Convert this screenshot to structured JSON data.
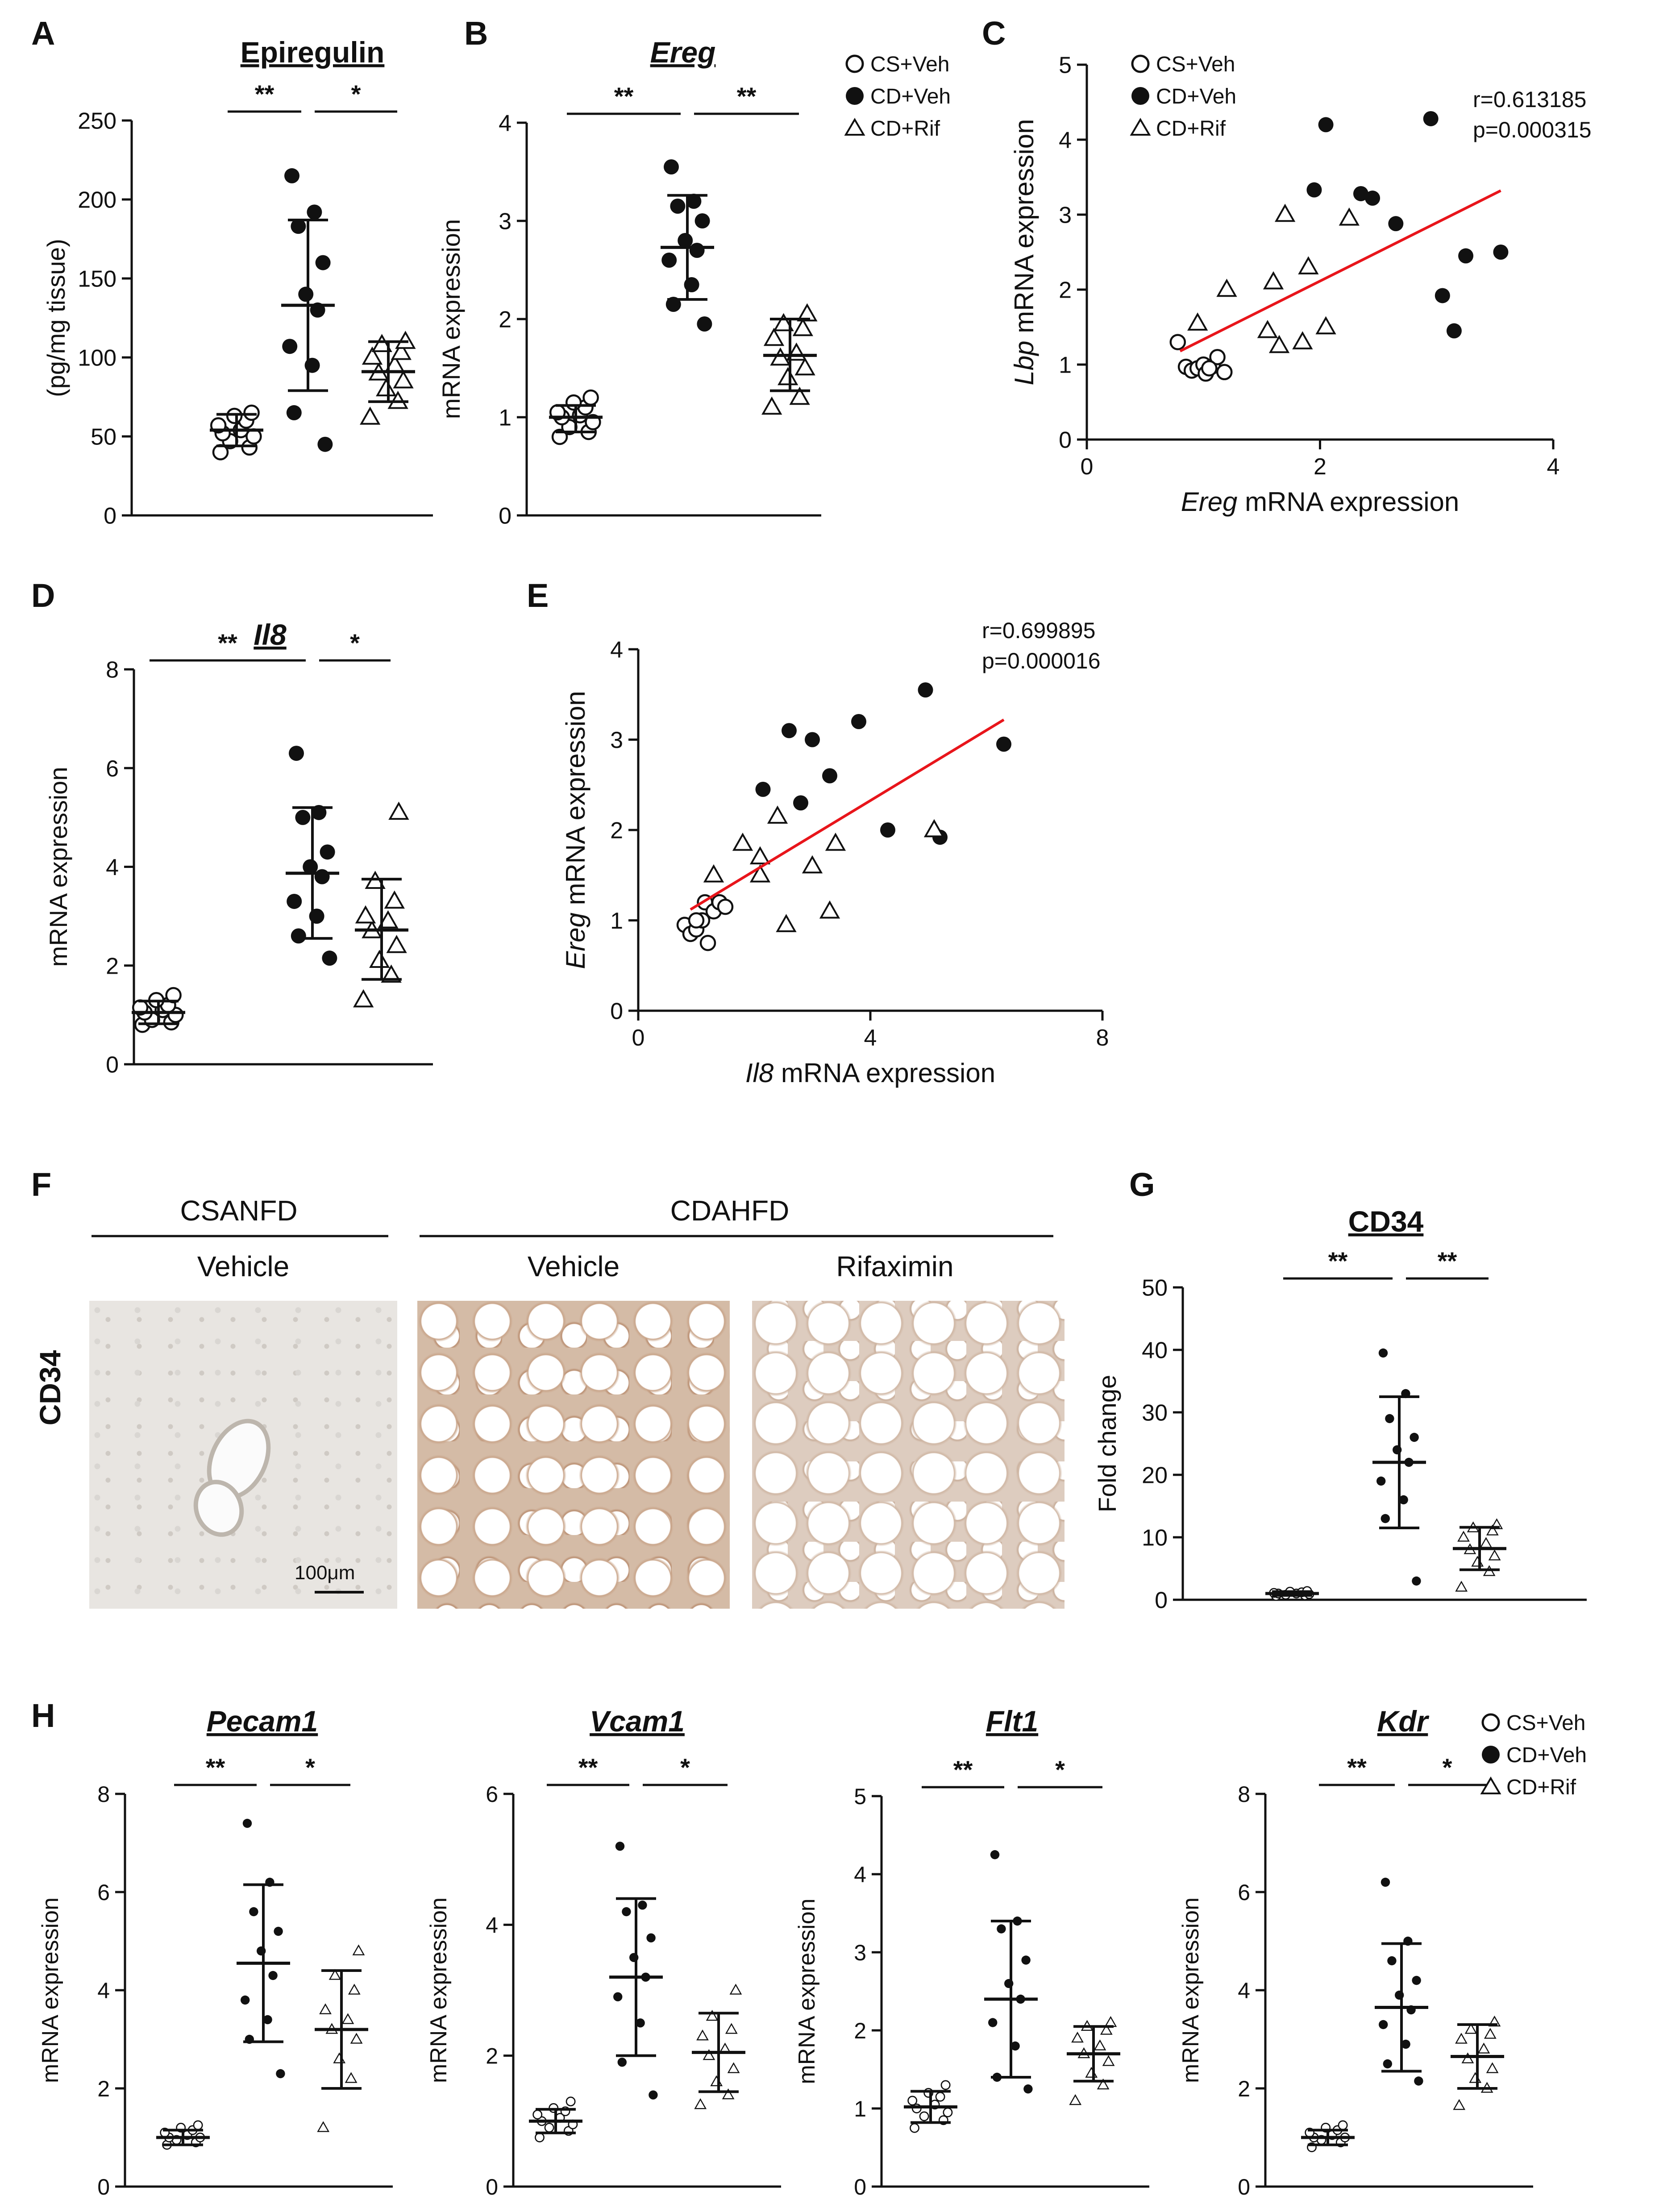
{
  "panels": {
    "A": "A",
    "B": "B",
    "C": "C",
    "D": "D",
    "E": "E",
    "F": "F",
    "G": "G",
    "H": "H"
  },
  "legend": {
    "cs_veh": "CS+Veh",
    "cd_veh": "CD+Veh",
    "cd_rif": "CD+Rif"
  },
  "colors": {
    "points": "#111111",
    "regression": "#e8151b"
  },
  "histology": {
    "group_left": "CSANFD",
    "group_right": "CDAHFD",
    "col1": "Vehicle",
    "col2": "Vehicle",
    "col3": "Rifaximin",
    "row_label": "CD34",
    "scale_bar": "100μm"
  },
  "chart_data": [
    {
      "id": "A",
      "type": "scatter",
      "title": "Epiregulin",
      "title_italic": false,
      "ylabel": "(pg/mg tissue)",
      "ylim": [
        0,
        250
      ],
      "yticks": [
        0,
        50,
        100,
        150,
        200,
        250
      ],
      "groups": [
        {
          "name": "CS+Veh",
          "marker": "open-circle",
          "mean": 54,
          "sd_low": 44,
          "sd_high": 64,
          "values": [
            40,
            43,
            47,
            50,
            52,
            54,
            57,
            60,
            63,
            65
          ]
        },
        {
          "name": "CD+Veh",
          "marker": "filled-circle",
          "mean": 133,
          "sd_low": 79,
          "sd_high": 187,
          "values": [
            45,
            65,
            95,
            107,
            130,
            140,
            160,
            183,
            192,
            215
          ]
        },
        {
          "name": "CD+Rif",
          "marker": "open-triangle",
          "mean": 91,
          "sd_low": 72,
          "sd_high": 110,
          "values": [
            62,
            72,
            80,
            85,
            90,
            95,
            100,
            103,
            108,
            110
          ]
        }
      ],
      "significance": [
        {
          "label": "**",
          "from": 0,
          "to": 1
        },
        {
          "label": "*",
          "from": 1,
          "to": 2
        }
      ]
    },
    {
      "id": "B",
      "type": "scatter",
      "title": "Ereg",
      "title_italic": true,
      "ylabel": "mRNA expression",
      "ylim": [
        0,
        4
      ],
      "yticks": [
        0,
        1,
        2,
        3,
        4
      ],
      "groups": [
        {
          "name": "CS+Veh",
          "marker": "open-circle",
          "mean": 1.0,
          "sd_low": 0.85,
          "sd_high": 1.12,
          "values": [
            0.8,
            0.85,
            0.9,
            0.95,
            1.0,
            1.02,
            1.05,
            1.1,
            1.15,
            1.2
          ]
        },
        {
          "name": "CD+Veh",
          "marker": "filled-circle",
          "mean": 2.73,
          "sd_low": 2.2,
          "sd_high": 3.26,
          "values": [
            1.95,
            2.15,
            2.35,
            2.6,
            2.7,
            2.8,
            3.0,
            3.15,
            3.2,
            3.55
          ]
        },
        {
          "name": "CD+Rif",
          "marker": "open-triangle",
          "mean": 1.63,
          "sd_low": 1.27,
          "sd_high": 2.0,
          "values": [
            1.1,
            1.2,
            1.4,
            1.5,
            1.6,
            1.65,
            1.8,
            1.9,
            1.95,
            2.05
          ]
        }
      ],
      "significance": [
        {
          "label": "**",
          "from": 0,
          "to": 1
        },
        {
          "label": "**",
          "from": 1,
          "to": 2
        }
      ]
    },
    {
      "id": "C",
      "type": "scatter",
      "xlabel_italic": "Ereg",
      "xlabel": "mRNA expression",
      "ylabel_italic": "Lbp",
      "ylabel": "mRNA expression",
      "xlim": [
        0,
        4
      ],
      "xticks": [
        0,
        2,
        4
      ],
      "ylim": [
        0,
        5
      ],
      "yticks": [
        0,
        1,
        2,
        3,
        4,
        5
      ],
      "annotation": {
        "r": "r=0.613185",
        "p": "p=0.000315"
      },
      "regression": {
        "x": [
          0.8,
          3.55
        ],
        "y": [
          1.18,
          3.32
        ]
      },
      "series": [
        {
          "name": "CS+Veh",
          "marker": "open-circle",
          "points": [
            [
              0.78,
              1.3
            ],
            [
              0.85,
              0.97
            ],
            [
              0.9,
              0.92
            ],
            [
              0.95,
              0.95
            ],
            [
              1.0,
              1.0
            ],
            [
              1.02,
              0.88
            ],
            [
              1.08,
              0.98
            ],
            [
              1.12,
              1.1
            ],
            [
              1.18,
              0.9
            ],
            [
              1.05,
              0.95
            ]
          ]
        },
        {
          "name": "CD+Veh",
          "marker": "filled-circle",
          "points": [
            [
              1.95,
              3.33
            ],
            [
              2.05,
              4.2
            ],
            [
              2.35,
              3.28
            ],
            [
              2.45,
              3.22
            ],
            [
              2.65,
              2.88
            ],
            [
              2.95,
              4.28
            ],
            [
              3.05,
              1.92
            ],
            [
              3.15,
              1.45
            ],
            [
              3.25,
              2.45
            ],
            [
              3.55,
              2.5
            ]
          ]
        },
        {
          "name": "CD+Rif",
          "marker": "open-triangle",
          "points": [
            [
              0.95,
              1.55
            ],
            [
              1.2,
              2.0
            ],
            [
              1.55,
              1.45
            ],
            [
              1.6,
              2.1
            ],
            [
              1.65,
              1.25
            ],
            [
              1.85,
              1.3
            ],
            [
              1.9,
              2.3
            ],
            [
              1.7,
              3.0
            ],
            [
              2.05,
              1.5
            ],
            [
              2.25,
              2.95
            ]
          ]
        }
      ]
    },
    {
      "id": "D",
      "type": "scatter",
      "title": "Il8",
      "title_italic": true,
      "ylabel": "mRNA expression",
      "ylim": [
        0,
        8
      ],
      "yticks": [
        0,
        2,
        4,
        6,
        8
      ],
      "groups": [
        {
          "name": "CS+Veh",
          "marker": "open-circle",
          "mean": 1.05,
          "sd_low": 0.82,
          "sd_high": 1.28,
          "values": [
            0.8,
            0.85,
            0.9,
            1.0,
            1.05,
            1.1,
            1.15,
            1.2,
            1.3,
            1.4
          ]
        },
        {
          "name": "CD+Veh",
          "marker": "filled-circle",
          "mean": 3.87,
          "sd_low": 2.55,
          "sd_high": 5.2,
          "values": [
            2.15,
            2.6,
            3.0,
            3.3,
            3.8,
            4.0,
            4.3,
            5.0,
            5.1,
            6.3
          ]
        },
        {
          "name": "CD+Rif",
          "marker": "open-triangle",
          "mean": 2.72,
          "sd_low": 1.72,
          "sd_high": 3.75,
          "values": [
            1.3,
            1.8,
            2.1,
            2.4,
            2.7,
            2.9,
            3.0,
            3.3,
            3.7,
            5.1
          ]
        }
      ],
      "significance": [
        {
          "label": "**",
          "from": 0,
          "to": 1
        },
        {
          "label": "*",
          "from": 1,
          "to": 2
        }
      ]
    },
    {
      "id": "E",
      "type": "scatter",
      "xlabel_italic": "Il8",
      "xlabel": "mRNA expression",
      "ylabel_italic": "Ereg",
      "ylabel": "mRNA expression",
      "xlim": [
        0,
        8
      ],
      "xticks": [
        0,
        4,
        8
      ],
      "ylim": [
        0,
        4
      ],
      "yticks": [
        0,
        1,
        2,
        3,
        4
      ],
      "annotation": {
        "r": "r=0.699895",
        "p": "p=0.000016"
      },
      "regression": {
        "x": [
          0.9,
          6.3
        ],
        "y": [
          1.12,
          3.22
        ]
      },
      "series": [
        {
          "name": "CS+Veh",
          "marker": "open-circle",
          "points": [
            [
              0.8,
              0.95
            ],
            [
              0.9,
              0.85
            ],
            [
              1.0,
              0.9
            ],
            [
              1.1,
              1.0
            ],
            [
              1.15,
              1.2
            ],
            [
              1.2,
              0.75
            ],
            [
              1.3,
              1.1
            ],
            [
              1.4,
              1.2
            ],
            [
              1.5,
              1.15
            ],
            [
              1.0,
              1.0
            ]
          ]
        },
        {
          "name": "CD+Veh",
          "marker": "filled-circle",
          "points": [
            [
              2.15,
              2.45
            ],
            [
              2.6,
              3.1
            ],
            [
              2.8,
              2.3
            ],
            [
              3.0,
              3.0
            ],
            [
              3.3,
              2.6
            ],
            [
              3.8,
              3.2
            ],
            [
              4.3,
              2.0
            ],
            [
              4.95,
              3.55
            ],
            [
              5.2,
              1.92
            ],
            [
              6.3,
              2.95
            ]
          ]
        },
        {
          "name": "CD+Rif",
          "marker": "open-triangle",
          "points": [
            [
              1.3,
              1.5
            ],
            [
              1.8,
              1.85
            ],
            [
              2.1,
              1.5
            ],
            [
              2.1,
              1.7
            ],
            [
              2.4,
              2.15
            ],
            [
              2.55,
              0.95
            ],
            [
              3.0,
              1.6
            ],
            [
              3.4,
              1.85
            ],
            [
              3.3,
              1.1
            ],
            [
              5.1,
              2.0
            ]
          ]
        }
      ]
    },
    {
      "id": "G",
      "type": "scatter",
      "title": "CD34",
      "title_italic": false,
      "ylabel": "Fold change",
      "ylim": [
        0,
        50
      ],
      "yticks": [
        0,
        10,
        20,
        30,
        40,
        50
      ],
      "marker_scale": 0.6,
      "groups": [
        {
          "name": "CS+Veh",
          "marker": "open-circle",
          "mean": 1.0,
          "sd_low": 0.7,
          "sd_high": 1.3,
          "values": [
            0.6,
            0.7,
            0.8,
            0.9,
            1.0,
            1.0,
            1.1,
            1.2,
            1.3,
            1.4
          ]
        },
        {
          "name": "CD+Veh",
          "marker": "filled-circle",
          "mean": 22.0,
          "sd_low": 11.5,
          "sd_high": 32.5,
          "values": [
            3.0,
            13.0,
            16.0,
            19.0,
            22.0,
            24.0,
            26.0,
            29.0,
            33.0,
            39.5
          ]
        },
        {
          "name": "CD+Rif",
          "marker": "open-triangle",
          "mean": 8.2,
          "sd_low": 4.8,
          "sd_high": 11.6,
          "values": [
            2.0,
            4.5,
            6.0,
            7.0,
            8.0,
            9.0,
            10.0,
            11.0,
            11.5,
            12.0
          ]
        }
      ],
      "significance": [
        {
          "label": "**",
          "from": 0,
          "to": 1
        },
        {
          "label": "**",
          "from": 1,
          "to": 2
        }
      ]
    },
    {
      "id": "H1",
      "type": "scatter",
      "title": "Pecam1",
      "title_italic": true,
      "ylabel": "mRNA expression",
      "ylim": [
        0,
        8
      ],
      "yticks": [
        0,
        2,
        4,
        6,
        8
      ],
      "marker_scale": 0.6,
      "groups": [
        {
          "name": "CS+Veh",
          "marker": "open-circle",
          "mean": 1.0,
          "sd_low": 0.85,
          "sd_high": 1.15,
          "values": [
            0.85,
            0.9,
            0.95,
            1.0,
            1.0,
            1.05,
            1.1,
            1.15,
            1.2,
            1.25
          ]
        },
        {
          "name": "CD+Veh",
          "marker": "filled-circle",
          "mean": 4.55,
          "sd_low": 2.95,
          "sd_high": 6.15,
          "values": [
            2.3,
            3.0,
            3.4,
            3.8,
            4.3,
            4.8,
            5.2,
            5.6,
            6.2,
            7.4
          ]
        },
        {
          "name": "CD+Rif",
          "marker": "open-triangle",
          "mean": 3.2,
          "sd_low": 2.0,
          "sd_high": 4.4,
          "values": [
            1.2,
            2.2,
            2.6,
            3.0,
            3.2,
            3.4,
            3.6,
            4.0,
            4.3,
            4.8
          ]
        }
      ],
      "significance": [
        {
          "label": "**",
          "from": 0,
          "to": 1
        },
        {
          "label": "*",
          "from": 1,
          "to": 2
        }
      ]
    },
    {
      "id": "H2",
      "type": "scatter",
      "title": "Vcam1",
      "title_italic": true,
      "ylabel": "mRNA expression",
      "ylim": [
        0,
        6
      ],
      "yticks": [
        0,
        2,
        4,
        6
      ],
      "marker_scale": 0.6,
      "groups": [
        {
          "name": "CS+Veh",
          "marker": "open-circle",
          "mean": 1.0,
          "sd_low": 0.82,
          "sd_high": 1.18,
          "values": [
            0.75,
            0.85,
            0.9,
            0.95,
            1.0,
            1.05,
            1.1,
            1.15,
            1.2,
            1.3
          ]
        },
        {
          "name": "CD+Veh",
          "marker": "filled-circle",
          "mean": 3.2,
          "sd_low": 2.0,
          "sd_high": 4.4,
          "values": [
            1.4,
            1.9,
            2.5,
            2.9,
            3.2,
            3.5,
            3.8,
            4.2,
            4.3,
            5.2
          ]
        },
        {
          "name": "CD+Rif",
          "marker": "open-triangle",
          "mean": 2.05,
          "sd_low": 1.45,
          "sd_high": 2.65,
          "values": [
            1.25,
            1.4,
            1.6,
            1.8,
            2.0,
            2.1,
            2.3,
            2.4,
            2.6,
            3.0
          ]
        }
      ],
      "significance": [
        {
          "label": "**",
          "from": 0,
          "to": 1
        },
        {
          "label": "*",
          "from": 1,
          "to": 2
        }
      ]
    },
    {
      "id": "H3",
      "type": "scatter",
      "title": "Flt1",
      "title_italic": true,
      "ylabel": "mRNA expression",
      "ylim": [
        0,
        5
      ],
      "yticks": [
        0,
        1,
        2,
        3,
        4,
        5
      ],
      "marker_scale": 0.6,
      "groups": [
        {
          "name": "CS+Veh",
          "marker": "open-circle",
          "mean": 1.02,
          "sd_low": 0.82,
          "sd_high": 1.22,
          "values": [
            0.75,
            0.85,
            0.9,
            0.95,
            1.0,
            1.05,
            1.1,
            1.15,
            1.2,
            1.3
          ]
        },
        {
          "name": "CD+Veh",
          "marker": "filled-circle",
          "mean": 2.4,
          "sd_low": 1.4,
          "sd_high": 3.4,
          "values": [
            1.25,
            1.4,
            1.8,
            2.1,
            2.4,
            2.6,
            2.9,
            3.3,
            3.4,
            4.25
          ]
        },
        {
          "name": "CD+Rif",
          "marker": "open-triangle",
          "mean": 1.7,
          "sd_low": 1.35,
          "sd_high": 2.05,
          "values": [
            1.1,
            1.3,
            1.45,
            1.6,
            1.7,
            1.8,
            1.9,
            2.0,
            2.05,
            2.1
          ]
        }
      ],
      "significance": [
        {
          "label": "**",
          "from": 0,
          "to": 1
        },
        {
          "label": "*",
          "from": 1,
          "to": 2
        }
      ]
    },
    {
      "id": "H4",
      "type": "scatter",
      "title": "Kdr",
      "title_italic": true,
      "ylabel": "mRNA expression",
      "ylim": [
        0,
        8
      ],
      "yticks": [
        0,
        2,
        4,
        6,
        8
      ],
      "marker_scale": 0.6,
      "groups": [
        {
          "name": "CS+Veh",
          "marker": "open-circle",
          "mean": 1.0,
          "sd_low": 0.85,
          "sd_high": 1.15,
          "values": [
            0.8,
            0.9,
            0.95,
            1.0,
            1.0,
            1.05,
            1.1,
            1.15,
            1.2,
            1.25
          ]
        },
        {
          "name": "CD+Veh",
          "marker": "filled-circle",
          "mean": 3.65,
          "sd_low": 2.35,
          "sd_high": 4.95,
          "values": [
            2.15,
            2.5,
            2.9,
            3.3,
            3.6,
            3.9,
            4.2,
            4.6,
            5.0,
            6.2
          ]
        },
        {
          "name": "CD+Rif",
          "marker": "open-triangle",
          "mean": 2.65,
          "sd_low": 2.0,
          "sd_high": 3.3,
          "values": [
            1.65,
            2.0,
            2.2,
            2.4,
            2.6,
            2.8,
            3.0,
            3.1,
            3.2,
            3.35
          ]
        }
      ],
      "significance": [
        {
          "label": "**",
          "from": 0,
          "to": 1
        },
        {
          "label": "*",
          "from": 1,
          "to": 2
        }
      ]
    }
  ]
}
